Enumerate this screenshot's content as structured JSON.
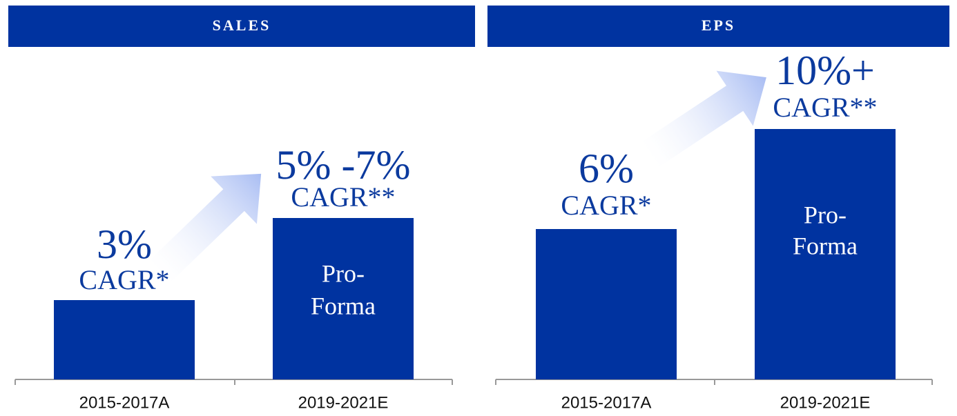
{
  "panels": [
    {
      "title": "SALES",
      "bars": [
        {
          "category": "2015-2017A",
          "value_label": "3%",
          "subtitle": "CAGR*",
          "inner": []
        },
        {
          "category": "2019-2021E",
          "value_label": "5% -7%",
          "subtitle": "CAGR**",
          "inner": [
            "Pro-",
            "Forma"
          ]
        }
      ]
    },
    {
      "title": "EPS",
      "bars": [
        {
          "category": "2015-2017A",
          "value_label": "6%",
          "subtitle": "CAGR*",
          "inner": []
        },
        {
          "category": "2019-2021E",
          "value_label": "10%+",
          "subtitle": "CAGR**",
          "inner": [
            "Pro-",
            "Forma"
          ]
        }
      ]
    }
  ]
}
